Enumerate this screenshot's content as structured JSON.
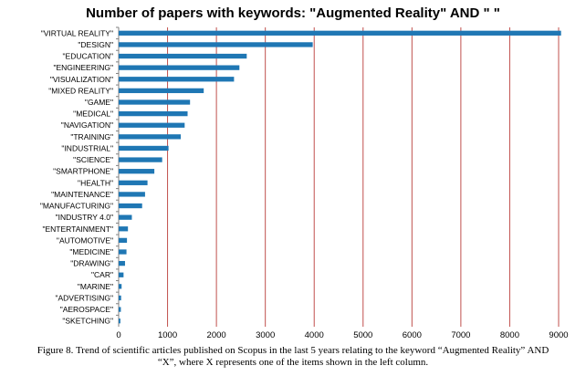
{
  "chart_data": {
    "type": "bar",
    "orientation": "horizontal",
    "title": "Number of papers with keywords: \"Augmented Reality\" AND \" \"",
    "xlabel": "",
    "ylabel": "",
    "xlim": [
      0,
      9000
    ],
    "xticks": [
      0,
      1000,
      2000,
      3000,
      4000,
      5000,
      6000,
      7000,
      8000,
      9000
    ],
    "grid": "vertical",
    "bar_color": "#1f77b4",
    "grid_color": "#c0504d",
    "categories": [
      "\"VIRTUAL REALITY\"",
      "\"DESIGN\"",
      "\"EDUCATION\"",
      "\"ENGINEERING\"",
      "\"VISUALIZATION\"",
      "\"MIXED REALITY\"",
      "\"GAME\"",
      "\"MEDICAL\"",
      "\"NAVIGATION\"",
      "\"TRAINING\"",
      "\"INDUSTRIAL\"",
      "\"SCIENCE\"",
      "\"SMARTPHONE\"",
      "\"HEALTH\"",
      "\"MAINTENANCE\"",
      "\"MANUFACTURING\"",
      "\"INDUSTRY 4.0\"",
      "\"ENTERTAINMENT\"",
      "\"AUTOMOTIVE\"",
      "\"MEDICINE\"",
      "\"DRAWING\"",
      "\"CAR\"",
      "\"MARINE\"",
      "\"ADVERTISING\"",
      "\"AEROSPACE\"",
      "\"SKETCHING\""
    ],
    "values": [
      9050,
      3970,
      2620,
      2470,
      2360,
      1740,
      1460,
      1410,
      1350,
      1270,
      1020,
      890,
      730,
      590,
      540,
      480,
      270,
      190,
      170,
      160,
      130,
      100,
      60,
      50,
      45,
      35
    ]
  },
  "caption": {
    "line1": "Figure 8. Trend of scientific articles published on Scopus in the last 5 years relating to the keyword “Augmented Reality” AND",
    "line2": "“X”, where X represents one of the items shown in the left column."
  }
}
